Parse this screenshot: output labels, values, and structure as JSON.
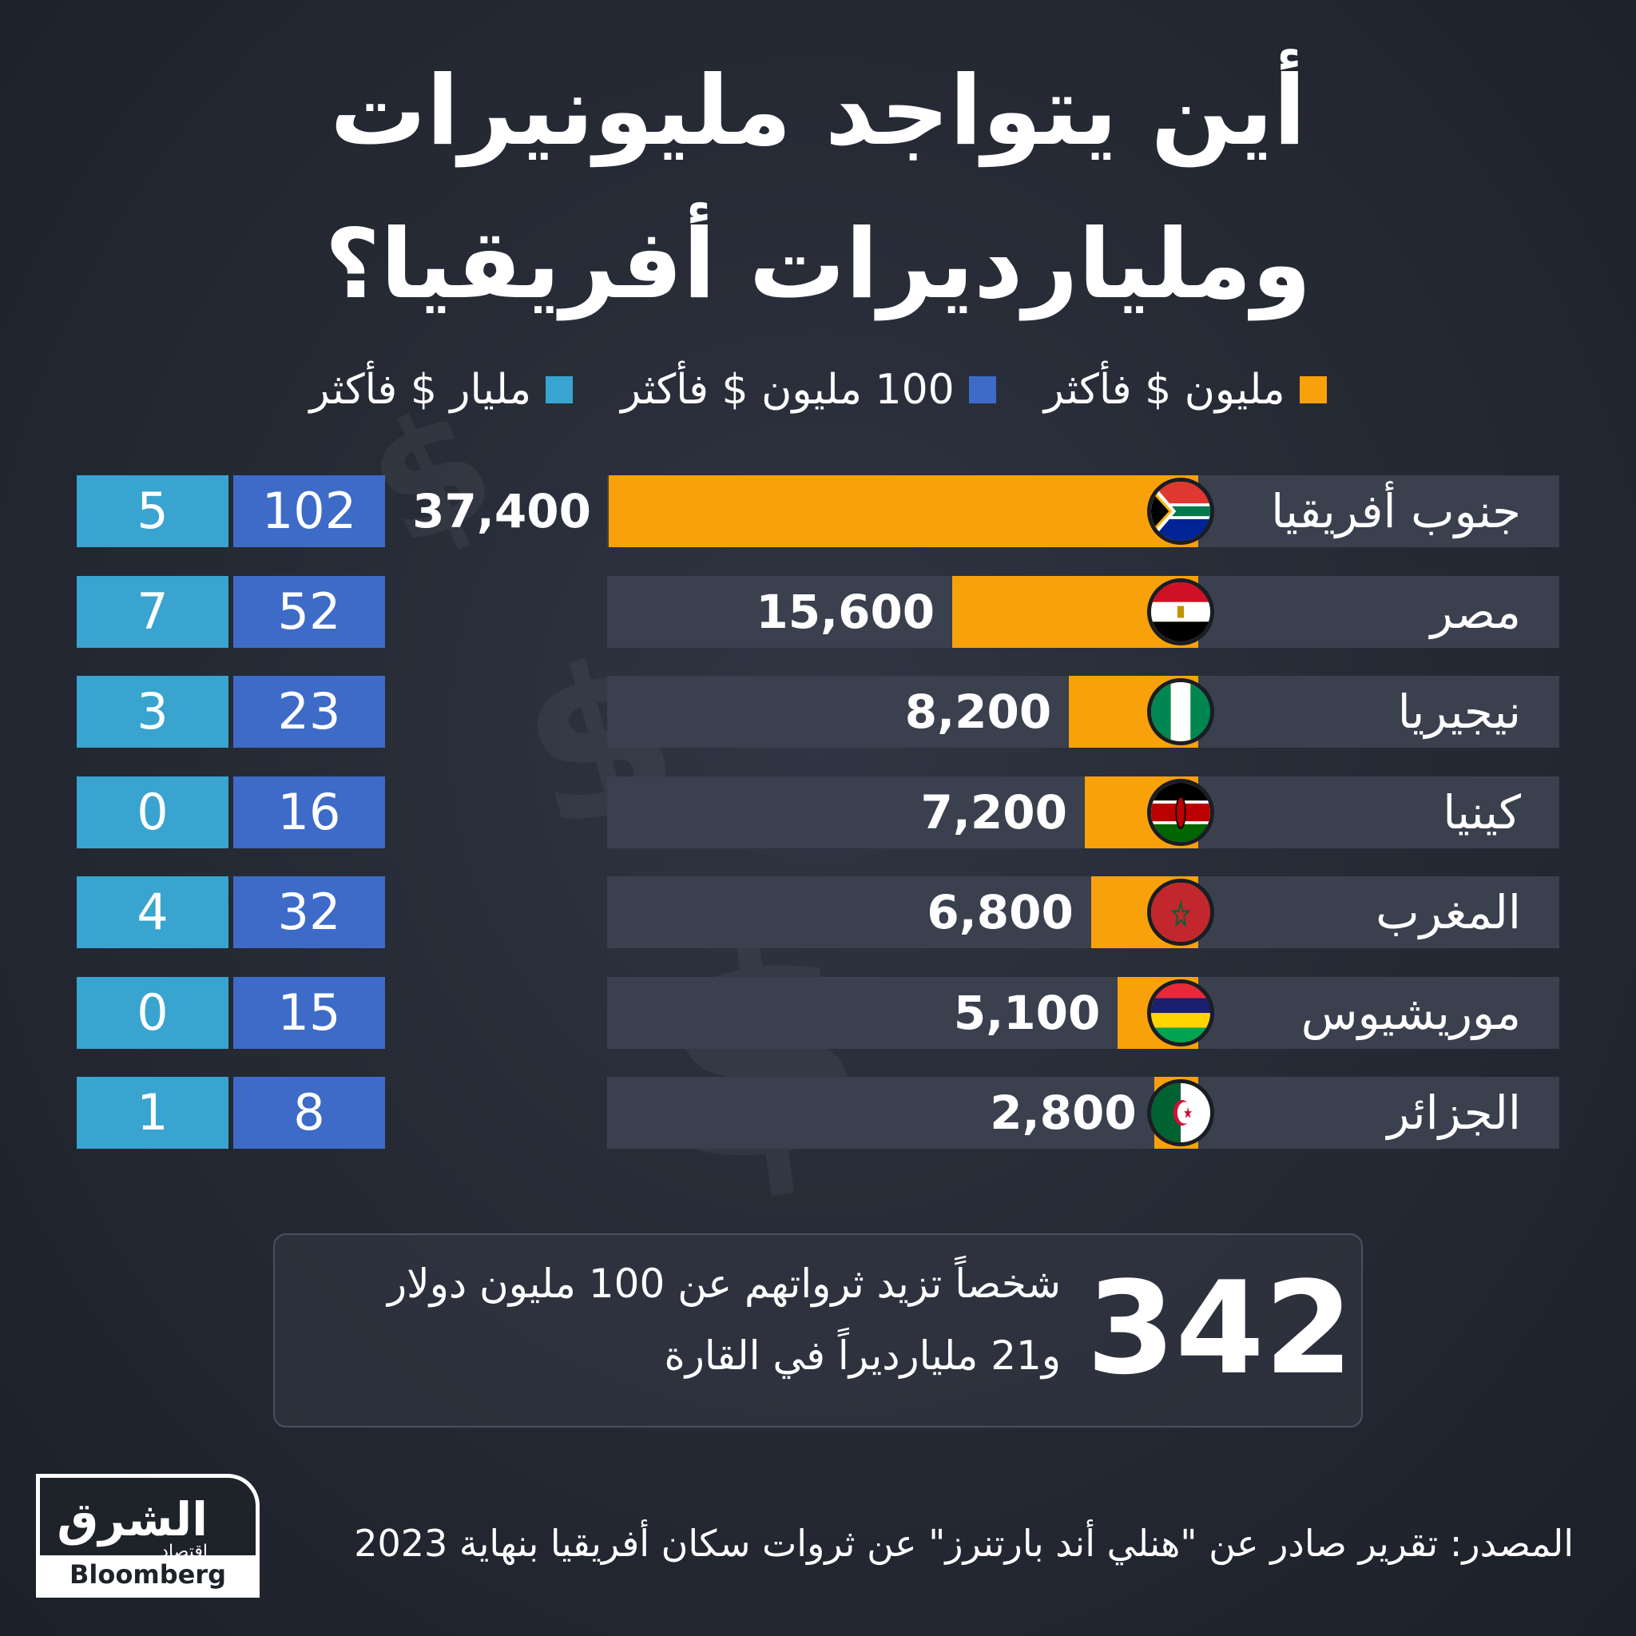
{
  "title_line1": "أين يتواجد مليونيرات",
  "title_line2": "ومليارديرات أفريقيا؟",
  "legend": [
    {
      "label": "مليون $ فأكثر",
      "color": "#f9a10b"
    },
    {
      "label": "100 مليون $ فأكثر",
      "color": "#3d6bc7"
    },
    {
      "label": "مليار $ فأكثر",
      "color": "#38a4cf"
    }
  ],
  "chart_data": {
    "type": "bar",
    "categories": [
      "جنوب أفريقيا",
      "مصر",
      "نيجيريا",
      "كينيا",
      "المغرب",
      "موريشيوس",
      "الجزائر"
    ],
    "series": [
      {
        "name": "مليون $ فأكثر",
        "values": [
          37400,
          15600,
          8200,
          7200,
          6800,
          5100,
          2800
        ],
        "labels": [
          "37,400",
          "15,600",
          "8,200",
          "7,200",
          "6,800",
          "5,100",
          "2,800"
        ]
      },
      {
        "name": "100 مليون $ فأكثر",
        "values": [
          102,
          52,
          23,
          16,
          32,
          15,
          8
        ]
      },
      {
        "name": "مليار $ فأكثر",
        "values": [
          5,
          7,
          3,
          0,
          4,
          0,
          1
        ]
      }
    ],
    "flags": [
      "south-africa-flag-icon",
      "egypt-flag-icon",
      "nigeria-flag-icon",
      "kenya-flag-icon",
      "morocco-flag-icon",
      "mauritius-flag-icon",
      "algeria-flag-icon"
    ]
  },
  "summary": {
    "number": "342",
    "line1": "شخصاً تزيد ثرواتهم عن 100 مليون دولار",
    "line2": "و21 مليارديراً في القارة"
  },
  "source": "المصدر: تقرير صادر عن \"هنلي أند بارتنرز\" عن ثروات سكان أفريقيا بنهاية 2023",
  "logo": {
    "arabic": "الشرق",
    "sub": "اقتصاد",
    "english": "Bloomberg"
  }
}
